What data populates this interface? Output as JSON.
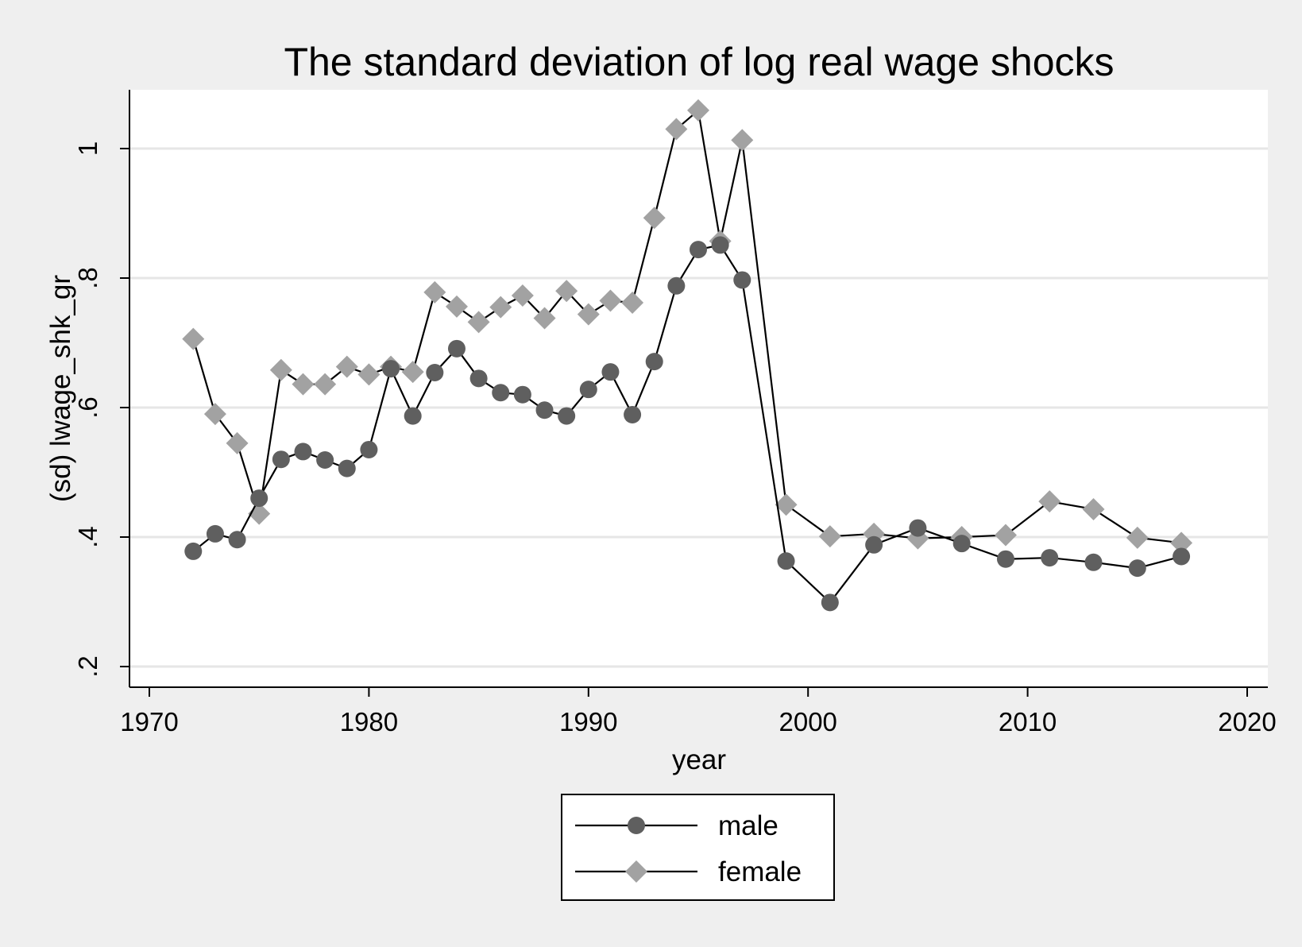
{
  "chart_data": {
    "type": "line",
    "title": "The standard deviation of log real wage shocks",
    "xlabel": "year",
    "ylabel": "(sd) lwage_shk_gr",
    "xlim": [
      1970,
      2020
    ],
    "ylim": [
      0.2,
      1.0
    ],
    "x_ticks": [
      1970,
      1980,
      1990,
      2000,
      2010,
      2020
    ],
    "x_tick_labels": [
      "1970",
      "1980",
      "1990",
      "2000",
      "2010",
      "2020"
    ],
    "y_ticks": [
      0.2,
      0.4,
      0.6,
      0.8,
      1.0
    ],
    "y_tick_labels": [
      ".2",
      ".4",
      ".6",
      ".8",
      "1"
    ],
    "grid": true,
    "legend_position": "bottom",
    "series": [
      {
        "name": "male",
        "marker": "circle",
        "color": "#5f5f5f",
        "x": [
          1972,
          1973,
          1974,
          1975,
          1976,
          1977,
          1978,
          1979,
          1980,
          1981,
          1982,
          1983,
          1984,
          1985,
          1986,
          1987,
          1988,
          1989,
          1990,
          1991,
          1992,
          1993,
          1994,
          1995,
          1996,
          1997,
          1999,
          2001,
          2003,
          2005,
          2007,
          2009,
          2011,
          2013,
          2015,
          2017
        ],
        "y": [
          0.378,
          0.405,
          0.396,
          0.46,
          0.52,
          0.532,
          0.519,
          0.506,
          0.535,
          0.66,
          0.587,
          0.654,
          0.691,
          0.645,
          0.623,
          0.62,
          0.596,
          0.587,
          0.628,
          0.655,
          0.589,
          0.671,
          0.788,
          0.844,
          0.851,
          0.797,
          0.363,
          0.299,
          0.388,
          0.414,
          0.39,
          0.366,
          0.368,
          0.361,
          0.352,
          0.37
        ]
      },
      {
        "name": "female",
        "marker": "diamond",
        "color": "#a2a2a2",
        "x": [
          1972,
          1973,
          1974,
          1975,
          1976,
          1977,
          1978,
          1979,
          1980,
          1981,
          1982,
          1983,
          1984,
          1985,
          1986,
          1987,
          1988,
          1989,
          1990,
          1991,
          1992,
          1993,
          1994,
          1995,
          1996,
          1997,
          1999,
          2001,
          2003,
          2005,
          2007,
          2009,
          2011,
          2013,
          2015,
          2017
        ],
        "y": [
          0.706,
          0.59,
          0.545,
          0.436,
          0.658,
          0.636,
          0.636,
          0.663,
          0.651,
          0.663,
          0.655,
          0.778,
          0.756,
          0.732,
          0.755,
          0.773,
          0.738,
          0.78,
          0.744,
          0.765,
          0.762,
          0.893,
          1.03,
          1.059,
          0.857,
          1.013,
          0.45,
          0.401,
          0.405,
          0.398,
          0.4,
          0.403,
          0.455,
          0.443,
          0.399,
          0.391
        ]
      }
    ]
  }
}
